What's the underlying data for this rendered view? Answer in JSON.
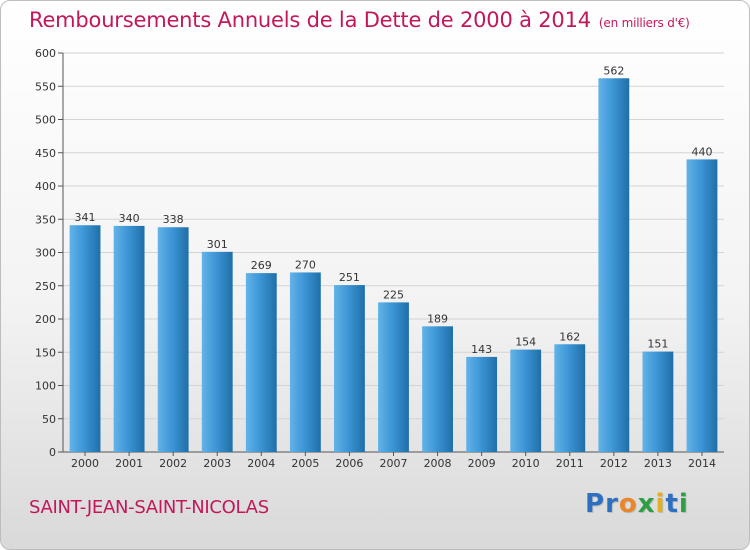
{
  "header": {
    "title": "Remboursements Annuels de la Dette de 2000 à 2014",
    "unit": "(en milliers d'€)"
  },
  "footer": {
    "place": "SAINT-JEAN-SAINT-NICOLAS",
    "logo_letters": [
      "P",
      "r",
      "o",
      "x",
      "i",
      "t",
      "i"
    ],
    "logo_colors": [
      "#2f6fbf",
      "#2f6fbf",
      "#e8862a",
      "#2f9e44",
      "#e0b020",
      "#2f6fbf",
      "#2f9e44"
    ]
  },
  "colors": {
    "bar": "#3d96d6",
    "bar_light": "#63b3e8",
    "bar_dark": "#1f6fa8",
    "title": "#c2185b"
  },
  "chart_data": {
    "type": "bar",
    "title": "Remboursements Annuels de la Dette de 2000 à 2014",
    "xlabel": "",
    "ylabel": "en milliers d'€",
    "ylim": [
      0,
      600
    ],
    "yticks": [
      0,
      50,
      100,
      150,
      200,
      250,
      300,
      350,
      400,
      450,
      500,
      550,
      600
    ],
    "grid": true,
    "categories": [
      "2000",
      "2001",
      "2002",
      "2003",
      "2004",
      "2005",
      "2006",
      "2007",
      "2008",
      "2009",
      "2010",
      "2011",
      "2012",
      "2013",
      "2014"
    ],
    "values": [
      341,
      340,
      338,
      301,
      269,
      270,
      251,
      225,
      189,
      143,
      154,
      162,
      562,
      151,
      440
    ]
  }
}
